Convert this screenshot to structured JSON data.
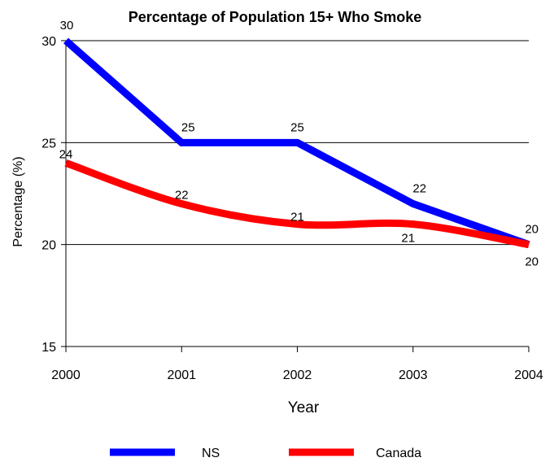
{
  "chart_data": {
    "type": "line",
    "title": "Percentage of Population 15+ Who Smoke",
    "xlabel": "Year",
    "ylabel": "Percentage (%)",
    "x": [
      "2000",
      "2001",
      "2002",
      "2003",
      "2004"
    ],
    "yticks": [
      "15",
      "20",
      "25",
      "30"
    ],
    "ylim": [
      15,
      30
    ],
    "grid": "horizontal",
    "legend": "bottom",
    "series": [
      {
        "name": "NS",
        "values": [
          30,
          25,
          25,
          22,
          20
        ],
        "color": "#0000ff",
        "labels": [
          "30",
          "25",
          "25",
          "22",
          "20"
        ]
      },
      {
        "name": "Canada",
        "values": [
          24,
          22,
          21,
          21,
          20
        ],
        "color": "#ff0000",
        "labels": [
          "24",
          "22",
          "21",
          "21",
          "20"
        ]
      }
    ]
  }
}
